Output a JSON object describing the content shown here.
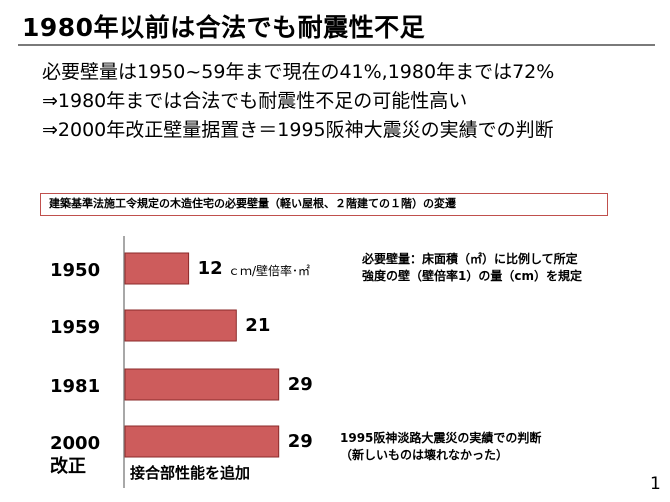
{
  "slide": {
    "title": "1980年以前は合法でも耐震性不足",
    "bullets": [
      "必要壁量は1950~59年まで現在の41%,1980年までは72%",
      "⇒1980年までは合法でも耐震性不足の可能性高い",
      "⇒2000年改正壁量据置き＝1995阪神大震災の実績での判断"
    ],
    "page_number": "1"
  },
  "chart_data": {
    "type": "bar",
    "orientation": "horizontal",
    "title": "建築基準法施工令規定の木造住宅の必要壁量（軽い屋根、２階建ての１階）の変遷",
    "categories": [
      {
        "line1": "1950",
        "line2": ""
      },
      {
        "line1": "1959",
        "line2": ""
      },
      {
        "line1": "1981",
        "line2": ""
      },
      {
        "line1": "2000",
        "line2": "改正"
      }
    ],
    "values": [
      12,
      21,
      29,
      29
    ],
    "value_labels": [
      "12",
      "21",
      "29",
      "29"
    ],
    "unit": "ｃｍ/壁倍率･㎡",
    "xlim": [
      0,
      40
    ],
    "bar_color": "#cd5c5c",
    "bar_edge_color": "#8b2a2a",
    "annotations": {
      "definition": [
        "必要壁量：床面積（㎡）に比例して所定",
        "強度の壁（壁倍率1）の量（cm）を規定"
      ],
      "kobe": [
        "1995阪神淡路大震災の実績での判断",
        "（新しいものは壊れなかった）"
      ],
      "added": "接合部性能を追加"
    }
  }
}
